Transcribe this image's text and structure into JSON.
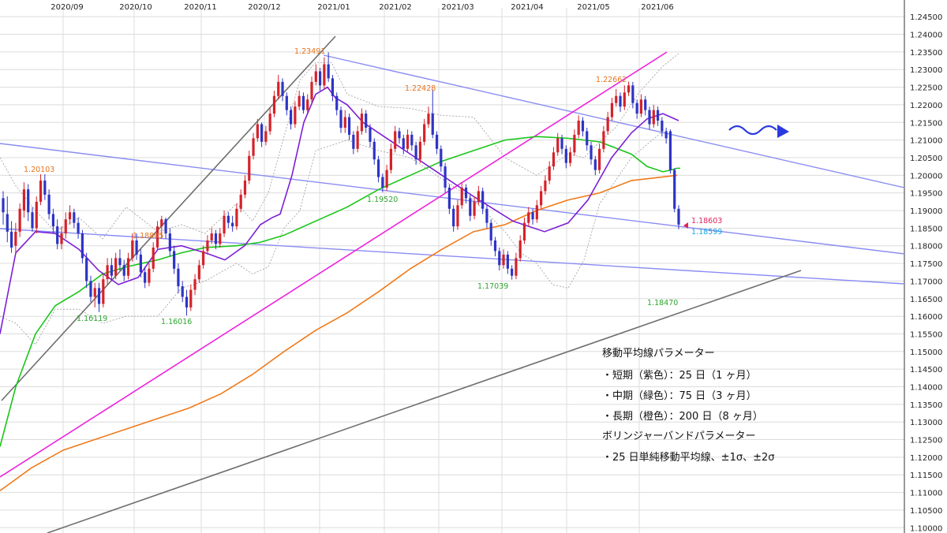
{
  "chart_data": {
    "type": "candlestick",
    "x_ticks": [
      "2020/09",
      "2020/10",
      "2020/11",
      "2020/12",
      "2021/01",
      "2021/02",
      "2021/03",
      "2021/04",
      "2021/05",
      "2021/06"
    ],
    "y_ticks": [
      "1.24500",
      "1.24000",
      "1.23500",
      "1.23000",
      "1.22500",
      "1.22000",
      "1.21500",
      "1.21000",
      "1.20500",
      "1.20000",
      "1.19500",
      "1.19000",
      "1.18500",
      "1.18000",
      "1.17500",
      "1.17000",
      "1.16500",
      "1.16000",
      "1.15500",
      "1.15000",
      "1.14500",
      "1.14000",
      "1.13500",
      "1.13000",
      "1.12500",
      "1.12000",
      "1.11500",
      "1.11000",
      "1.10500",
      "1.10000"
    ],
    "ylim": [
      1.0985,
      1.2475
    ],
    "grid": true,
    "price_labels": [
      {
        "text": "1.20103",
        "color": "#e8731d"
      },
      {
        "text": "1.18805",
        "color": "#e8731d"
      },
      {
        "text": "1.23491",
        "color": "#e8731d"
      },
      {
        "text": "1.22428",
        "color": "#e8731d"
      },
      {
        "text": "1.22662",
        "color": "#e8731d"
      },
      {
        "text": "1.16119",
        "color": "#2fa52f"
      },
      {
        "text": "1.16016",
        "color": "#2fa52f"
      },
      {
        "text": "1.19520",
        "color": "#2fa52f"
      },
      {
        "text": "1.17039",
        "color": "#2fa52f"
      },
      {
        "text": "1.18470",
        "color": "#2fa52f"
      },
      {
        "text": "1.18603",
        "color": "#e0245e"
      },
      {
        "text": "1.18599",
        "color": "#1aa3e0"
      }
    ],
    "series": [
      {
        "color": "#7d1fd6",
        "values": [
          1.155,
          1.178,
          1.184,
          1.1835,
          1.179,
          1.173,
          1.169,
          1.171,
          1.179,
          1.18,
          1.178,
          1.176,
          1.18,
          1.186,
          1.188,
          1.189,
          1.2,
          1.215,
          1.223,
          1.225,
          1.222,
          1.22,
          1.215,
          1.212,
          1.209,
          1.206,
          1.2,
          1.194,
          1.187,
          1.184,
          1.1865,
          1.193,
          1.205,
          1.212,
          1.216,
          1.2175,
          1.2155
        ]
      },
      {
        "color": "#18c618",
        "values": [
          1.123,
          1.14,
          1.155,
          1.163,
          1.167,
          1.172,
          1.174,
          1.176,
          1.178,
          1.1795,
          1.18,
          1.181,
          1.183,
          1.187,
          1.191,
          1.196,
          1.2,
          1.204,
          1.207,
          1.21,
          1.211,
          1.2105,
          1.2095,
          1.206,
          1.2025,
          1.201,
          1.2015,
          1.202,
          1.202
        ]
      },
      {
        "color": "#f07a1a",
        "values": [
          1.1105,
          1.117,
          1.122,
          1.125,
          1.128,
          1.131,
          1.134,
          1.138,
          1.1435,
          1.15,
          1.156,
          1.161,
          1.167,
          1.1735,
          1.179,
          1.184,
          1.186,
          1.19,
          1.193,
          1.195,
          1.1985,
          1.2
        ]
      },
      {
        "color": "#9a9a9a",
        "values": [
          1.205,
          1.197,
          1.19,
          1.184,
          1.188,
          1.182,
          1.191,
          1.184,
          1.186,
          1.1835,
          1.192,
          1.187,
          1.195,
          1.211,
          1.227,
          1.232,
          1.232,
          1.223,
          1.2195,
          1.219,
          1.217,
          1.2165,
          1.205,
          1.2,
          1.206,
          1.205,
          1.2095,
          1.2135,
          1.2235,
          1.231,
          1.2345
        ]
      },
      {
        "color": "#9a9a9a",
        "values": [
          1.16,
          1.158,
          1.152,
          1.162,
          1.162,
          1.158,
          1.16,
          1.16,
          1.168,
          1.17,
          1.175,
          1.172,
          1.174,
          1.185,
          1.19,
          1.207,
          1.21,
          1.207,
          1.205,
          1.199,
          1.193,
          1.184,
          1.178,
          1.175,
          1.169,
          1.168,
          1.176,
          1.192,
          1.205,
          1.2125
        ]
      }
    ],
    "candles": [
      [
        1.1935,
        1.1895,
        1.1955,
        1.186
      ],
      [
        1.189,
        1.184,
        1.194,
        1.181
      ],
      [
        1.184,
        1.1795,
        1.187,
        1.178
      ],
      [
        1.18,
        1.184,
        1.1865,
        1.1775
      ],
      [
        1.184,
        1.1905,
        1.192,
        1.1825
      ],
      [
        1.19,
        1.196,
        1.198,
        1.188
      ],
      [
        1.196,
        1.1895,
        1.1975,
        1.187
      ],
      [
        1.1895,
        1.185,
        1.191,
        1.184
      ],
      [
        1.185,
        1.1925,
        1.194,
        1.1835
      ],
      [
        1.1925,
        1.1985,
        1.2003,
        1.1915
      ],
      [
        1.1985,
        1.1945,
        1.2003,
        1.193
      ],
      [
        1.1945,
        1.189,
        1.196,
        1.1875
      ],
      [
        1.189,
        1.1855,
        1.1905,
        1.1835
      ],
      [
        1.1855,
        1.1805,
        1.1875,
        1.179
      ],
      [
        1.1805,
        1.1835,
        1.1855,
        1.179
      ],
      [
        1.1835,
        1.1875,
        1.1895,
        1.182
      ],
      [
        1.1875,
        1.1895,
        1.1915,
        1.186
      ],
      [
        1.1895,
        1.1865,
        1.1905,
        1.185
      ],
      [
        1.1865,
        1.1835,
        1.188,
        1.182
      ],
      [
        1.1835,
        1.1765,
        1.1845,
        1.175
      ],
      [
        1.1765,
        1.17,
        1.178,
        1.168
      ],
      [
        1.17,
        1.1655,
        1.1715,
        1.164
      ],
      [
        1.1655,
        1.168,
        1.1695,
        1.1625
      ],
      [
        1.168,
        1.1635,
        1.1695,
        1.1612
      ],
      [
        1.1635,
        1.1705,
        1.172,
        1.1625
      ],
      [
        1.1705,
        1.1745,
        1.1765,
        1.169
      ],
      [
        1.1745,
        1.1715,
        1.1765,
        1.17
      ],
      [
        1.1715,
        1.1765,
        1.178,
        1.1705
      ],
      [
        1.1765,
        1.1745,
        1.179,
        1.173
      ],
      [
        1.1745,
        1.1715,
        1.176,
        1.17
      ],
      [
        1.1715,
        1.1765,
        1.178,
        1.1705
      ],
      [
        1.1765,
        1.1815,
        1.1835,
        1.1755
      ],
      [
        1.1815,
        1.1775,
        1.1835,
        1.176
      ],
      [
        1.1775,
        1.1725,
        1.179,
        1.171
      ],
      [
        1.1725,
        1.1695,
        1.174,
        1.168
      ],
      [
        1.1695,
        1.1735,
        1.175,
        1.1685
      ],
      [
        1.1735,
        1.1795,
        1.181,
        1.1725
      ],
      [
        1.1795,
        1.1855,
        1.187,
        1.1785
      ],
      [
        1.1855,
        1.1875,
        1.1885,
        1.182
      ],
      [
        1.1875,
        1.1835,
        1.188,
        1.182
      ],
      [
        1.1835,
        1.1785,
        1.185,
        1.177
      ],
      [
        1.1785,
        1.1735,
        1.18,
        1.172
      ],
      [
        1.1735,
        1.1685,
        1.175,
        1.1665
      ],
      [
        1.1685,
        1.1655,
        1.17,
        1.164
      ],
      [
        1.1655,
        1.1625,
        1.1675,
        1.1602
      ],
      [
        1.1625,
        1.1675,
        1.169,
        1.1615
      ],
      [
        1.1675,
        1.1705,
        1.172,
        1.166
      ],
      [
        1.1705,
        1.1745,
        1.176,
        1.1695
      ],
      [
        1.1745,
        1.1785,
        1.18,
        1.1735
      ],
      [
        1.1785,
        1.1815,
        1.183,
        1.1775
      ],
      [
        1.1815,
        1.1835,
        1.185,
        1.1805
      ],
      [
        1.1835,
        1.1805,
        1.1845,
        1.179
      ],
      [
        1.1805,
        1.1835,
        1.185,
        1.1795
      ],
      [
        1.1835,
        1.1885,
        1.19,
        1.1825
      ],
      [
        1.1885,
        1.1865,
        1.1895,
        1.185
      ],
      [
        1.1865,
        1.1855,
        1.1885,
        1.184
      ],
      [
        1.1855,
        1.1905,
        1.192,
        1.1845
      ],
      [
        1.1905,
        1.1945,
        1.196,
        1.1895
      ],
      [
        1.1945,
        1.1985,
        1.2,
        1.1935
      ],
      [
        1.1985,
        1.2055,
        1.207,
        1.1975
      ],
      [
        1.2055,
        1.2105,
        1.212,
        1.2045
      ],
      [
        1.2105,
        1.2145,
        1.216,
        1.2095
      ],
      [
        1.2145,
        1.2095,
        1.215,
        1.208
      ],
      [
        1.2095,
        1.2125,
        1.214,
        1.2085
      ],
      [
        1.2125,
        1.2175,
        1.219,
        1.2115
      ],
      [
        1.2175,
        1.2225,
        1.224,
        1.2165
      ],
      [
        1.2225,
        1.2265,
        1.2285,
        1.2215
      ],
      [
        1.2265,
        1.2225,
        1.2275,
        1.221
      ],
      [
        1.2225,
        1.2185,
        1.2235,
        1.217
      ],
      [
        1.2185,
        1.2145,
        1.2195,
        1.213
      ],
      [
        1.2145,
        1.2195,
        1.221,
        1.2135
      ],
      [
        1.2195,
        1.2225,
        1.224,
        1.2185
      ],
      [
        1.2225,
        1.2185,
        1.2235,
        1.2175
      ],
      [
        1.2185,
        1.2215,
        1.223,
        1.2175
      ],
      [
        1.2215,
        1.2265,
        1.228,
        1.2205
      ],
      [
        1.2265,
        1.2295,
        1.2315,
        1.2255
      ],
      [
        1.2295,
        1.2255,
        1.2305,
        1.224
      ],
      [
        1.2255,
        1.2315,
        1.2335,
        1.2245
      ],
      [
        1.2315,
        1.2275,
        1.2349,
        1.2265
      ],
      [
        1.2275,
        1.2225,
        1.2285,
        1.221
      ],
      [
        1.2225,
        1.2185,
        1.2235,
        1.217
      ],
      [
        1.2185,
        1.2135,
        1.2195,
        1.212
      ],
      [
        1.2135,
        1.2165,
        1.2185,
        1.212
      ],
      [
        1.2165,
        1.2115,
        1.2175,
        1.21
      ],
      [
        1.2115,
        1.2075,
        1.2125,
        1.206
      ],
      [
        1.2075,
        1.2125,
        1.214,
        1.2065
      ],
      [
        1.2125,
        1.2175,
        1.219,
        1.2115
      ],
      [
        1.2175,
        1.2135,
        1.2185,
        1.212
      ],
      [
        1.2135,
        1.2095,
        1.2145,
        1.208
      ],
      [
        1.2095,
        1.2045,
        1.2105,
        1.203
      ],
      [
        1.2045,
        1.1995,
        1.2055,
        1.198
      ],
      [
        1.1995,
        1.1965,
        1.2005,
        1.1952
      ],
      [
        1.1965,
        1.2015,
        1.203,
        1.1955
      ],
      [
        1.2015,
        1.2075,
        1.209,
        1.2005
      ],
      [
        1.2075,
        1.2125,
        1.214,
        1.2065
      ],
      [
        1.2125,
        1.2105,
        1.2135,
        1.209
      ],
      [
        1.2105,
        1.2075,
        1.2115,
        1.206
      ],
      [
        1.2075,
        1.2115,
        1.213,
        1.2065
      ],
      [
        1.2115,
        1.2085,
        1.2125,
        1.207
      ],
      [
        1.2085,
        1.2045,
        1.2095,
        1.203
      ],
      [
        1.2045,
        1.2095,
        1.211,
        1.2035
      ],
      [
        1.2095,
        1.2145,
        1.216,
        1.2085
      ],
      [
        1.2145,
        1.2175,
        1.2195,
        1.2135
      ],
      [
        1.2175,
        1.2115,
        1.2243,
        1.2105
      ],
      [
        1.2115,
        1.2075,
        1.2125,
        1.206
      ],
      [
        1.2075,
        1.2025,
        1.2085,
        1.201
      ],
      [
        1.2025,
        1.1965,
        1.2035,
        1.195
      ],
      [
        1.1965,
        1.1905,
        1.1975,
        1.189
      ],
      [
        1.1905,
        1.1855,
        1.1915,
        1.184
      ],
      [
        1.1855,
        1.1915,
        1.193,
        1.1845
      ],
      [
        1.1915,
        1.1965,
        1.198,
        1.1905
      ],
      [
        1.1965,
        1.1935,
        1.1975,
        1.192
      ],
      [
        1.1935,
        1.1885,
        1.1945,
        1.187
      ],
      [
        1.1885,
        1.1925,
        1.194,
        1.1875
      ],
      [
        1.1925,
        1.1955,
        1.197,
        1.1915
      ],
      [
        1.1955,
        1.1905,
        1.1965,
        1.189
      ],
      [
        1.1905,
        1.1865,
        1.1915,
        1.185
      ],
      [
        1.1865,
        1.1815,
        1.1875,
        1.18
      ],
      [
        1.1815,
        1.1785,
        1.1825,
        1.177
      ],
      [
        1.1785,
        1.1745,
        1.1795,
        1.173
      ],
      [
        1.1745,
        1.1775,
        1.179,
        1.1735
      ],
      [
        1.1775,
        1.1735,
        1.1785,
        1.172
      ],
      [
        1.1735,
        1.1715,
        1.1745,
        1.1704
      ],
      [
        1.1715,
        1.1765,
        1.178,
        1.1705
      ],
      [
        1.1765,
        1.1815,
        1.183,
        1.1755
      ],
      [
        1.1815,
        1.1865,
        1.188,
        1.1805
      ],
      [
        1.1865,
        1.1895,
        1.191,
        1.1855
      ],
      [
        1.1895,
        1.1875,
        1.1905,
        1.186
      ],
      [
        1.1875,
        1.1915,
        1.193,
        1.1865
      ],
      [
        1.1915,
        1.1955,
        1.197,
        1.1905
      ],
      [
        1.1955,
        1.1985,
        1.2,
        1.1945
      ],
      [
        1.1985,
        1.2025,
        1.204,
        1.1975
      ],
      [
        1.2025,
        1.2065,
        1.208,
        1.2015
      ],
      [
        1.2065,
        1.2105,
        1.212,
        1.2055
      ],
      [
        1.2105,
        1.2075,
        1.2115,
        1.206
      ],
      [
        1.2075,
        1.2035,
        1.2085,
        1.202
      ],
      [
        1.2035,
        1.2065,
        1.208,
        1.2025
      ],
      [
        1.2065,
        1.2115,
        1.213,
        1.2055
      ],
      [
        1.2115,
        1.2155,
        1.217,
        1.2105
      ],
      [
        1.2155,
        1.2125,
        1.2165,
        1.211
      ],
      [
        1.2125,
        1.2085,
        1.2135,
        1.207
      ],
      [
        1.2085,
        1.2045,
        1.2095,
        1.203
      ],
      [
        1.2045,
        1.2015,
        1.2055,
        1.2
      ],
      [
        1.2015,
        1.2075,
        1.209,
        1.2005
      ],
      [
        1.2075,
        1.2125,
        1.214,
        1.2065
      ],
      [
        1.2125,
        1.2165,
        1.218,
        1.2115
      ],
      [
        1.2165,
        1.2205,
        1.222,
        1.2155
      ],
      [
        1.2205,
        1.2225,
        1.2245,
        1.2195
      ],
      [
        1.2225,
        1.2195,
        1.2235,
        1.218
      ],
      [
        1.2195,
        1.2235,
        1.2255,
        1.2185
      ],
      [
        1.2235,
        1.2255,
        1.2266,
        1.2225
      ],
      [
        1.2255,
        1.2205,
        1.2265,
        1.219
      ],
      [
        1.2205,
        1.2175,
        1.2215,
        1.216
      ],
      [
        1.2175,
        1.2215,
        1.223,
        1.2165
      ],
      [
        1.2215,
        1.2185,
        1.2225,
        1.217
      ],
      [
        1.2185,
        1.2145,
        1.2195,
        1.213
      ],
      [
        1.2145,
        1.2185,
        1.22,
        1.2135
      ],
      [
        1.2185,
        1.2155,
        1.2195,
        1.214
      ],
      [
        1.2155,
        1.2125,
        1.2165,
        1.211
      ],
      [
        1.2125,
        1.2105,
        1.2135,
        1.209
      ],
      [
        1.2125,
        1.2015,
        1.213,
        1.2005
      ],
      [
        1.2015,
        1.1905,
        1.202,
        1.1895
      ],
      [
        1.1905,
        1.186,
        1.1915,
        1.1847
      ]
    ],
    "annotation": {
      "lines": [
        "移動平均線パラメーター",
        "・短期（紫色）：25 日（1 ヶ月）",
        "・中期（緑色）：75 日（3 ヶ月）",
        "・長期（橙色）：200 日（8 ヶ月）",
        "ボリンジャーバンドパラメーター",
        "・25 日単純移動平均線、±1σ、±2σ"
      ]
    },
    "colors": {
      "bull": "#d4222a",
      "bear": "#2d34c4",
      "grid": "#dcdcdc",
      "trend_blue": "#8a8cf2",
      "trend_magenta": "#ee22dd",
      "trend_gray": "#6e6e6e",
      "band": "#6a6a6a",
      "arrow": "#2b39e0"
    }
  }
}
